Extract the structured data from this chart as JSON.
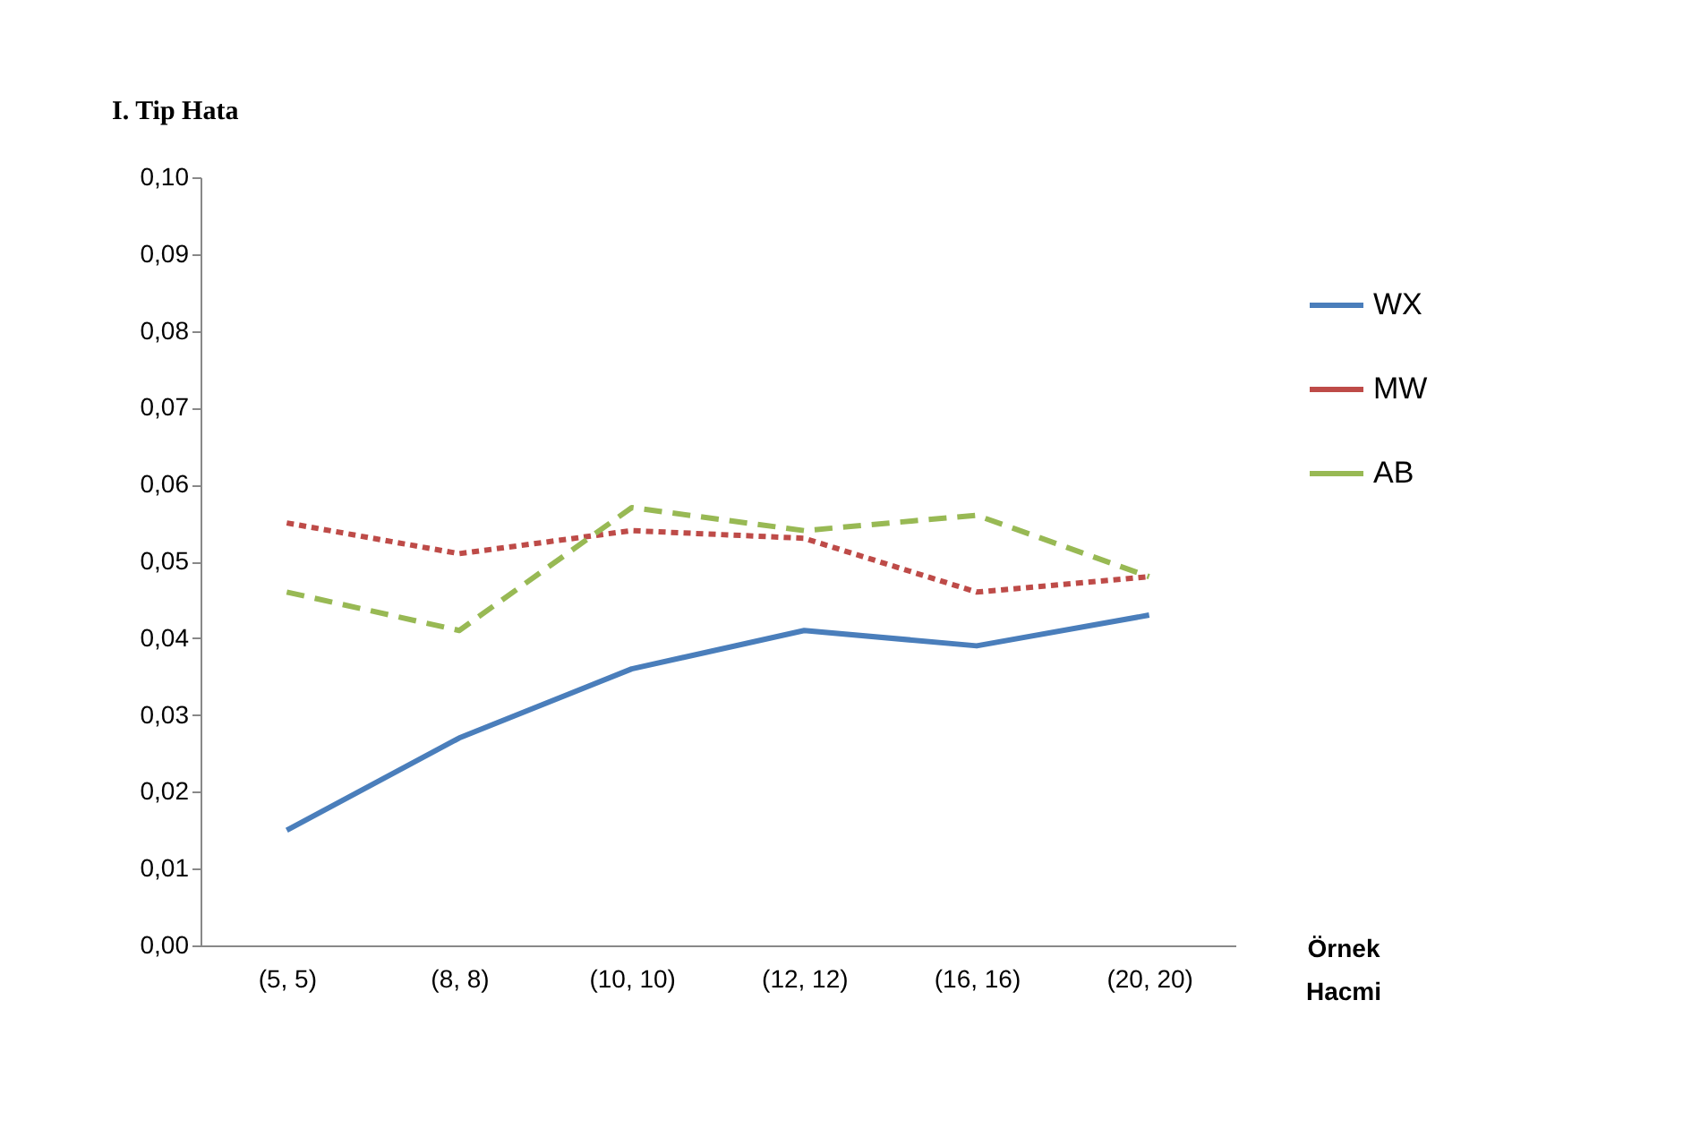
{
  "chart_data": {
    "type": "line",
    "ylabel": "I. Tip Hata",
    "xlabel": "Örnek Hacmi",
    "categories": [
      "(5, 5)",
      "(8, 8)",
      "(10, 10)",
      "(12, 12)",
      "(16, 16)",
      "(20, 20)"
    ],
    "series": [
      {
        "name": "WX",
        "color": "#4a7ebb",
        "line_style": "solid",
        "values": [
          0.015,
          0.027,
          0.036,
          0.041,
          0.039,
          0.043
        ]
      },
      {
        "name": "MW",
        "color": "#be4b48",
        "line_style": "dotted",
        "values": [
          0.055,
          0.051,
          0.054,
          0.053,
          0.046,
          0.048
        ]
      },
      {
        "name": "AB",
        "color": "#98b954",
        "line_style": "dashed",
        "values": [
          0.046,
          0.041,
          0.057,
          0.054,
          0.056,
          0.048
        ]
      }
    ],
    "ylim": [
      0,
      0.1
    ],
    "yticks": [
      {
        "value": 0,
        "label": "0,00"
      },
      {
        "value": 0.01,
        "label": "0,01"
      },
      {
        "value": 0.02,
        "label": "0,02"
      },
      {
        "value": 0.03,
        "label": "0,03"
      },
      {
        "value": 0.04,
        "label": "0,04"
      },
      {
        "value": 0.05,
        "label": "0,05"
      },
      {
        "value": 0.06,
        "label": "0,06"
      },
      {
        "value": 0.07,
        "label": "0,07"
      },
      {
        "value": 0.08,
        "label": "0,08"
      },
      {
        "value": 0.09,
        "label": "0,09"
      },
      {
        "value": 0.1,
        "label": "0,10"
      }
    ],
    "grid": false,
    "legend": "right",
    "marker": "none"
  }
}
